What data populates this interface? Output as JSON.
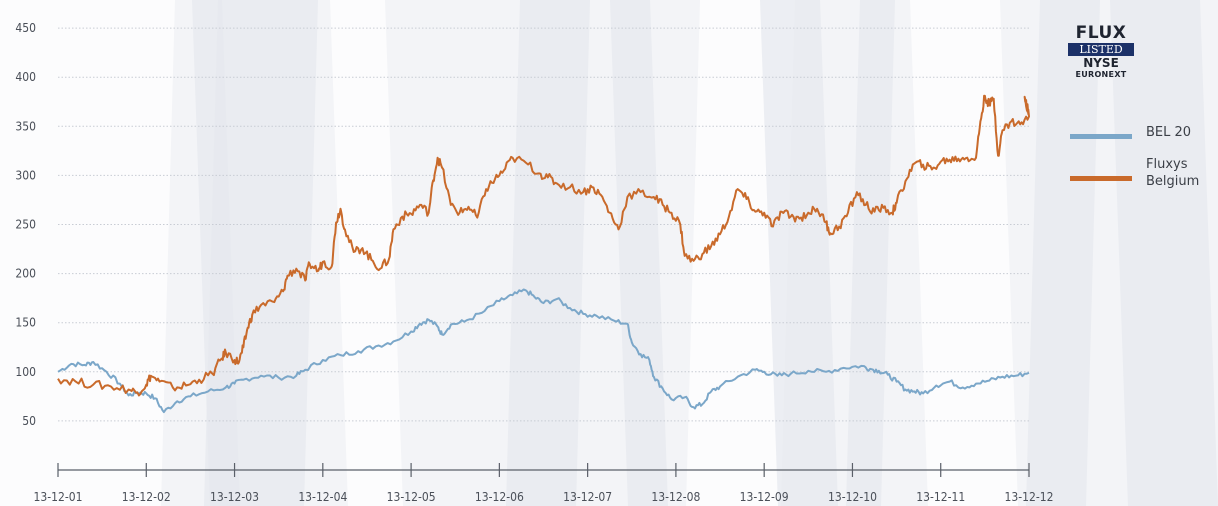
{
  "logo": {
    "line1": "FLUX",
    "line2": "LISTED",
    "line3": "NYSE",
    "line4": "EURONEXT"
  },
  "colors": {
    "bel20": "#7ba7c9",
    "fluxys": "#c96a2b",
    "grid": "#c8ccd4",
    "axis": "#5a5f68",
    "background": "#f3f4f7"
  },
  "chart_data": {
    "type": "line",
    "title": "",
    "xlabel": "",
    "ylabel": "",
    "x_categories": [
      "13-12-01",
      "13-12-02",
      "13-12-03",
      "13-12-04",
      "13-12-05",
      "13-12-06",
      "13-12-07",
      "13-12-08",
      "13-12-09",
      "13-12-10",
      "13-12-11",
      "13-12-12"
    ],
    "y_ticks": [
      50,
      100,
      150,
      200,
      250,
      300,
      350,
      400,
      450
    ],
    "ylim": [
      0,
      450
    ],
    "grid": true,
    "legend_position": "right",
    "series": [
      {
        "name": "BEL 20",
        "color": "#7ba7c9",
        "points": [
          [
            0,
            100
          ],
          [
            0.15,
            108
          ],
          [
            0.3,
            107
          ],
          [
            0.4,
            110
          ],
          [
            0.55,
            100
          ],
          [
            0.7,
            88
          ],
          [
            0.8,
            76
          ],
          [
            0.9,
            79
          ],
          [
            1.0,
            78
          ],
          [
            1.1,
            73
          ],
          [
            1.2,
            59
          ],
          [
            1.35,
            70
          ],
          [
            1.5,
            75
          ],
          [
            1.7,
            80
          ],
          [
            1.9,
            84
          ],
          [
            2.0,
            88
          ],
          [
            2.1,
            92
          ],
          [
            2.3,
            96
          ],
          [
            2.5,
            94
          ],
          [
            2.7,
            96
          ],
          [
            2.8,
            102
          ],
          [
            3.0,
            112
          ],
          [
            3.2,
            117
          ],
          [
            3.4,
            121
          ],
          [
            3.6,
            126
          ],
          [
            3.8,
            131
          ],
          [
            4.0,
            141
          ],
          [
            4.1,
            149
          ],
          [
            4.2,
            153
          ],
          [
            4.3,
            146
          ],
          [
            4.35,
            138
          ],
          [
            4.45,
            148
          ],
          [
            4.6,
            151
          ],
          [
            4.8,
            160
          ],
          [
            5.0,
            172
          ],
          [
            5.15,
            178
          ],
          [
            5.3,
            183
          ],
          [
            5.4,
            176
          ],
          [
            5.5,
            170
          ],
          [
            5.65,
            174
          ],
          [
            5.8,
            165
          ],
          [
            5.95,
            159
          ],
          [
            6.1,
            157
          ],
          [
            6.3,
            152
          ],
          [
            6.45,
            149
          ],
          [
            6.5,
            130
          ],
          [
            6.6,
            118
          ],
          [
            6.7,
            112
          ],
          [
            6.75,
            95
          ],
          [
            6.85,
            83
          ],
          [
            6.95,
            72
          ],
          [
            7.1,
            74
          ],
          [
            7.2,
            64
          ],
          [
            7.3,
            67
          ],
          [
            7.4,
            80
          ],
          [
            7.5,
            85
          ],
          [
            7.7,
            95
          ],
          [
            7.9,
            102
          ],
          [
            8.0,
            100
          ],
          [
            8.15,
            96
          ],
          [
            8.3,
            98
          ],
          [
            8.5,
            101
          ],
          [
            8.7,
            100
          ],
          [
            8.9,
            104
          ],
          [
            9.1,
            106
          ],
          [
            9.2,
            103
          ],
          [
            9.3,
            101
          ],
          [
            9.4,
            97
          ],
          [
            9.5,
            90
          ],
          [
            9.6,
            82
          ],
          [
            9.7,
            80
          ],
          [
            9.8,
            78
          ],
          [
            9.95,
            86
          ],
          [
            10.1,
            90
          ],
          [
            10.25,
            84
          ],
          [
            10.4,
            88
          ],
          [
            10.55,
            91
          ],
          [
            10.7,
            95
          ],
          [
            10.85,
            96
          ],
          [
            11.0,
            99
          ]
        ]
      },
      {
        "name": "Fluxys Belgium",
        "color": "#c96a2b",
        "points": [
          [
            0,
            93
          ],
          [
            0.2,
            90
          ],
          [
            0.4,
            87
          ],
          [
            0.6,
            85
          ],
          [
            0.8,
            82
          ],
          [
            0.9,
            79
          ],
          [
            1.0,
            87
          ],
          [
            1.05,
            96
          ],
          [
            1.15,
            90
          ],
          [
            1.3,
            84
          ],
          [
            1.45,
            86
          ],
          [
            1.6,
            92
          ],
          [
            1.75,
            98
          ],
          [
            1.85,
            113
          ],
          [
            1.9,
            120
          ],
          [
            2.0,
            112
          ],
          [
            2.05,
            110
          ],
          [
            2.1,
            125
          ],
          [
            2.15,
            145
          ],
          [
            2.2,
            158
          ],
          [
            2.3,
            168
          ],
          [
            2.45,
            171
          ],
          [
            2.55,
            182
          ],
          [
            2.6,
            198
          ],
          [
            2.7,
            205
          ],
          [
            2.8,
            193
          ],
          [
            2.85,
            210
          ],
          [
            2.95,
            203
          ],
          [
            3.0,
            212
          ],
          [
            3.1,
            207
          ],
          [
            3.15,
            252
          ],
          [
            3.2,
            266
          ],
          [
            3.25,
            245
          ],
          [
            3.35,
            222
          ],
          [
            3.45,
            226
          ],
          [
            3.55,
            214
          ],
          [
            3.65,
            205
          ],
          [
            3.75,
            215
          ],
          [
            3.8,
            245
          ],
          [
            3.9,
            258
          ],
          [
            4.0,
            261
          ],
          [
            4.1,
            270
          ],
          [
            4.2,
            262
          ],
          [
            4.25,
            295
          ],
          [
            4.3,
            318
          ],
          [
            4.35,
            308
          ],
          [
            4.45,
            270
          ],
          [
            4.55,
            262
          ],
          [
            4.65,
            268
          ],
          [
            4.75,
            257
          ],
          [
            4.85,
            286
          ],
          [
            4.95,
            296
          ],
          [
            5.05,
            305
          ],
          [
            5.15,
            318
          ],
          [
            5.3,
            313
          ],
          [
            5.45,
            302
          ],
          [
            5.55,
            298
          ],
          [
            5.65,
            292
          ],
          [
            5.8,
            288
          ],
          [
            5.95,
            283
          ],
          [
            6.05,
            288
          ],
          [
            6.15,
            280
          ],
          [
            6.25,
            262
          ],
          [
            6.35,
            245
          ],
          [
            6.45,
            278
          ],
          [
            6.6,
            283
          ],
          [
            6.75,
            278
          ],
          [
            6.85,
            270
          ],
          [
            6.95,
            262
          ],
          [
            7.05,
            250
          ],
          [
            7.1,
            218
          ],
          [
            7.2,
            213
          ],
          [
            7.3,
            220
          ],
          [
            7.4,
            228
          ],
          [
            7.5,
            240
          ],
          [
            7.6,
            258
          ],
          [
            7.7,
            286
          ],
          [
            7.8,
            276
          ],
          [
            7.9,
            263
          ],
          [
            8.0,
            262
          ],
          [
            8.1,
            248
          ],
          [
            8.2,
            263
          ],
          [
            8.3,
            258
          ],
          [
            8.4,
            256
          ],
          [
            8.5,
            262
          ],
          [
            8.6,
            266
          ],
          [
            8.7,
            252
          ],
          [
            8.75,
            241
          ],
          [
            8.85,
            248
          ],
          [
            8.95,
            262
          ],
          [
            9.05,
            283
          ],
          [
            9.15,
            270
          ],
          [
            9.25,
            263
          ],
          [
            9.35,
            267
          ],
          [
            9.45,
            262
          ],
          [
            9.5,
            272
          ],
          [
            9.6,
            294
          ],
          [
            9.7,
            312
          ],
          [
            9.8,
            311
          ],
          [
            9.9,
            306
          ],
          [
            10.0,
            314
          ],
          [
            10.1,
            316
          ],
          [
            10.2,
            317
          ],
          [
            10.3,
            318
          ],
          [
            10.4,
            318
          ],
          [
            10.45,
            355
          ],
          [
            10.5,
            381
          ],
          [
            10.55,
            372
          ],
          [
            10.6,
            378
          ],
          [
            10.65,
            320
          ],
          [
            10.7,
            346
          ],
          [
            10.8,
            355
          ],
          [
            10.9,
            352
          ],
          [
            11.0,
            360
          ],
          [
            10.95,
            380
          ],
          [
            11.0,
            362
          ]
        ]
      }
    ]
  }
}
